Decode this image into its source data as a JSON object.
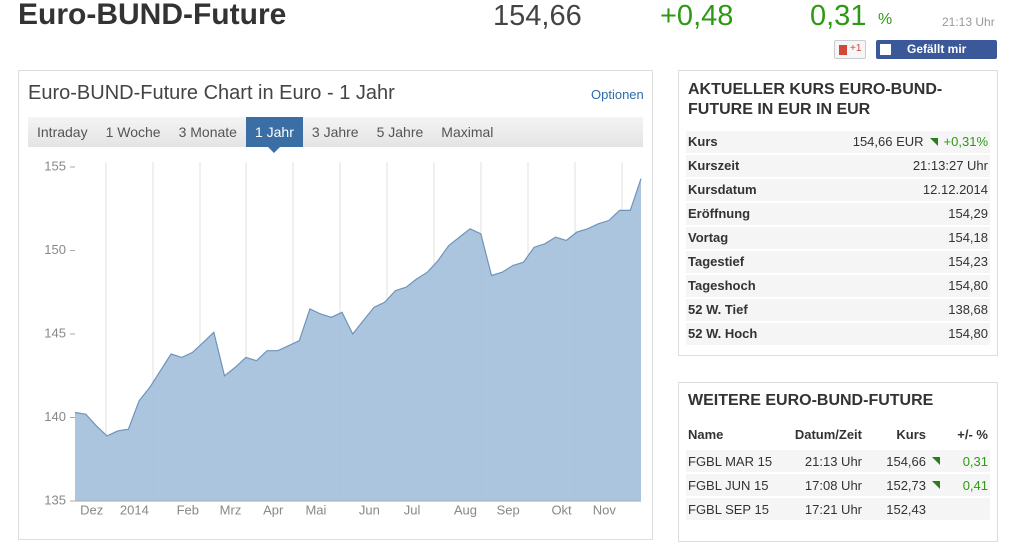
{
  "header": {
    "title": "Euro-BUND-Future",
    "price": "154,66",
    "change": "+0,48",
    "change_pct": "0,31",
    "pct_sign": "%",
    "time": "21:13 Uhr"
  },
  "social": {
    "gplus": "+1",
    "facebook": "Gefällt mir"
  },
  "chart_panel": {
    "title": "Euro-BUND-Future Chart in Euro - 1 Jahr",
    "options": "Optionen",
    "tabs": [
      "Intraday",
      "1 Woche",
      "3 Monate",
      "1 Jahr",
      "3 Jahre",
      "5 Jahre",
      "Maximal"
    ],
    "selected_tab": 3
  },
  "chart_data": {
    "type": "area",
    "color": "#a3bfdb",
    "line_color": "#6f93bb",
    "categories": [
      null,
      "Dez",
      null,
      null,
      null,
      "2014",
      null,
      null,
      null,
      null,
      "Feb",
      null,
      null,
      null,
      "Mrz",
      null,
      null,
      null,
      "Apr",
      null,
      null,
      null,
      "Mai",
      null,
      null,
      null,
      null,
      "Jun",
      null,
      null,
      null,
      "Jul",
      null,
      null,
      null,
      null,
      "Aug",
      null,
      null,
      null,
      "Sep",
      null,
      null,
      null,
      null,
      "Okt",
      null,
      null,
      null,
      "Nov",
      null,
      null,
      null,
      null
    ],
    "values": [
      140.3,
      140.2,
      139.5,
      138.9,
      139.2,
      139.3,
      141.0,
      141.8,
      142.8,
      143.8,
      143.6,
      143.9,
      144.5,
      145.1,
      142.5,
      143.0,
      143.6,
      143.4,
      144.0,
      144.0,
      144.3,
      144.6,
      146.5,
      146.2,
      146.0,
      146.3,
      145.0,
      145.8,
      146.6,
      146.9,
      147.6,
      147.8,
      148.3,
      148.7,
      149.4,
      150.3,
      150.8,
      151.3,
      151.0,
      148.5,
      148.7,
      149.1,
      149.3,
      150.2,
      150.4,
      150.8,
      150.6,
      151.1,
      151.3,
      151.6,
      151.8,
      152.4,
      152.4,
      154.3
    ],
    "ylim": [
      135,
      155
    ],
    "yticks": [
      135,
      140,
      145,
      150,
      155
    ]
  },
  "quote": {
    "title": "AKTUELLER KURS EURO-BUND-FUTURE IN EUR IN EUR",
    "rows": [
      [
        "Kurs",
        "154,66 EUR",
        "+0,31%"
      ],
      [
        "Kurszeit",
        "21:13:27 Uhr"
      ],
      [
        "Kursdatum",
        "12.12.2014"
      ],
      [
        "Eröffnung",
        "154,29"
      ],
      [
        "Vortag",
        "154,18"
      ],
      [
        "Tagestief",
        "154,23"
      ],
      [
        "Tageshoch",
        "154,80"
      ],
      [
        "52 W. Tief",
        "138,68"
      ],
      [
        "52 W. Hoch",
        "154,80"
      ]
    ]
  },
  "more": {
    "title": "WEITERE EURO-BUND-FUTURE",
    "columns": [
      "Name",
      "Datum/Zeit",
      "Kurs",
      "+/- %"
    ],
    "rows": [
      [
        "FGBL MAR 15",
        "21:13 Uhr",
        "154,66",
        "0,31"
      ],
      [
        "FGBL JUN 15",
        "17:08 Uhr",
        "152,73",
        "0,41"
      ],
      [
        "FGBL SEP 15",
        "17:21 Uhr",
        "152,43"
      ]
    ]
  }
}
